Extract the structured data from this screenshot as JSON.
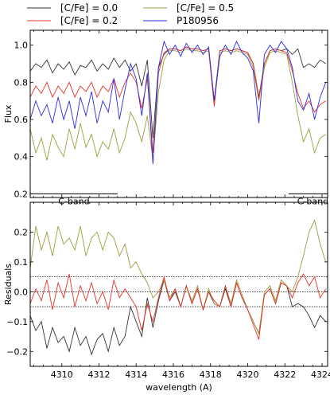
{
  "chart_data": [
    {
      "type": "line",
      "panel": "top",
      "ylabel": "Flux",
      "xlim": [
        4308.3,
        4324.3
      ],
      "ylim": [
        0.18,
        1.08
      ],
      "yticks": [
        0.2,
        0.4,
        0.6,
        0.8,
        1.0
      ],
      "ytick_labels": [
        "0.2",
        "0.4",
        "0.6",
        "0.8",
        "1.0"
      ],
      "grid": false,
      "legend_position": "above plot, two columns",
      "series": [
        {
          "name": "[C/Fe] = 0.0",
          "color": "#333333",
          "x": [
            4308.3,
            4308.6,
            4308.9,
            4309.2,
            4309.5,
            4309.8,
            4310.1,
            4310.4,
            4310.7,
            4311.0,
            4311.3,
            4311.6,
            4311.9,
            4312.2,
            4312.5,
            4312.8,
            4313.1,
            4313.4,
            4313.7,
            4314.0,
            4314.3,
            4314.6,
            4314.9,
            4315.2,
            4315.5,
            4315.8,
            4316.1,
            4316.4,
            4316.7,
            4317.0,
            4317.3,
            4317.6,
            4317.9,
            4318.2,
            4318.5,
            4318.8,
            4319.1,
            4319.4,
            4319.7,
            4320.0,
            4320.3,
            4320.6,
            4320.9,
            4321.2,
            4321.5,
            4321.8,
            4322.1,
            4322.4,
            4322.7,
            4323.0,
            4323.3,
            4323.6,
            4323.9,
            4324.2
          ],
          "y": [
            0.86,
            0.9,
            0.88,
            0.92,
            0.85,
            0.9,
            0.87,
            0.91,
            0.84,
            0.89,
            0.88,
            0.92,
            0.86,
            0.9,
            0.87,
            0.93,
            0.88,
            0.92,
            0.86,
            0.9,
            0.78,
            0.92,
            0.5,
            0.88,
            0.95,
            0.98,
            0.98,
            0.97,
            0.99,
            0.98,
            0.98,
            0.97,
            0.98,
            0.7,
            0.97,
            0.98,
            0.97,
            0.98,
            0.97,
            0.96,
            0.9,
            0.72,
            0.9,
            0.97,
            0.98,
            0.97,
            0.98,
            0.95,
            0.98,
            0.88,
            0.9,
            0.88,
            0.92,
            0.9
          ]
        },
        {
          "name": "[C/Fe] = 0.5",
          "color": "#9c9c3f",
          "x": [
            4308.3,
            4308.6,
            4308.9,
            4309.2,
            4309.5,
            4309.8,
            4310.1,
            4310.4,
            4310.7,
            4311.0,
            4311.3,
            4311.6,
            4311.9,
            4312.2,
            4312.5,
            4312.8,
            4313.1,
            4313.4,
            4313.7,
            4314.0,
            4314.3,
            4314.6,
            4314.9,
            4315.2,
            4315.5,
            4315.8,
            4316.1,
            4316.4,
            4316.7,
            4317.0,
            4317.3,
            4317.6,
            4317.9,
            4318.2,
            4318.5,
            4318.8,
            4319.1,
            4319.4,
            4319.7,
            4320.0,
            4320.3,
            4320.6,
            4320.9,
            4321.2,
            4321.5,
            4321.8,
            4322.1,
            4322.4,
            4322.7,
            4323.0,
            4323.3,
            4323.6,
            4323.9,
            4324.2
          ],
          "y": [
            0.55,
            0.42,
            0.5,
            0.38,
            0.52,
            0.45,
            0.4,
            0.55,
            0.44,
            0.58,
            0.45,
            0.52,
            0.4,
            0.48,
            0.44,
            0.55,
            0.42,
            0.5,
            0.64,
            0.58,
            0.48,
            0.62,
            0.38,
            0.75,
            0.92,
            0.97,
            0.97,
            0.96,
            0.98,
            0.97,
            0.97,
            0.96,
            0.97,
            0.68,
            0.96,
            0.97,
            0.96,
            0.97,
            0.96,
            0.95,
            0.88,
            0.7,
            0.88,
            0.96,
            0.97,
            0.96,
            0.95,
            0.8,
            0.62,
            0.48,
            0.55,
            0.42,
            0.5,
            0.52
          ]
        },
        {
          "name": "[C/Fe] = 0.2",
          "color": "#e8332a",
          "x": [
            4308.3,
            4308.6,
            4308.9,
            4309.2,
            4309.5,
            4309.8,
            4310.1,
            4310.4,
            4310.7,
            4311.0,
            4311.3,
            4311.6,
            4311.9,
            4312.2,
            4312.5,
            4312.8,
            4313.1,
            4313.4,
            4313.7,
            4314.0,
            4314.3,
            4314.6,
            4314.9,
            4315.2,
            4315.5,
            4315.8,
            4316.1,
            4316.4,
            4316.7,
            4317.0,
            4317.3,
            4317.6,
            4317.9,
            4318.2,
            4318.5,
            4318.8,
            4319.1,
            4319.4,
            4319.7,
            4320.0,
            4320.3,
            4320.6,
            4320.9,
            4321.2,
            4321.5,
            4321.8,
            4322.1,
            4322.4,
            4322.7,
            4323.0,
            4323.3,
            4323.6,
            4323.9,
            4324.2
          ],
          "y": [
            0.72,
            0.78,
            0.74,
            0.8,
            0.72,
            0.78,
            0.74,
            0.8,
            0.72,
            0.78,
            0.75,
            0.8,
            0.72,
            0.78,
            0.75,
            0.82,
            0.72,
            0.8,
            0.85,
            0.8,
            0.66,
            0.82,
            0.42,
            0.85,
            0.96,
            0.98,
            0.98,
            0.97,
            0.99,
            0.98,
            0.98,
            0.97,
            0.98,
            0.67,
            0.97,
            0.98,
            0.97,
            0.98,
            0.97,
            0.96,
            0.9,
            0.71,
            0.9,
            0.97,
            0.98,
            0.97,
            0.96,
            0.86,
            0.74,
            0.66,
            0.7,
            0.64,
            0.68,
            0.7
          ]
        },
        {
          "name": "P180956",
          "color": "#2a2ae0",
          "x": [
            4308.3,
            4308.6,
            4308.9,
            4309.2,
            4309.5,
            4309.8,
            4310.1,
            4310.4,
            4310.7,
            4311.0,
            4311.3,
            4311.6,
            4311.9,
            4312.2,
            4312.5,
            4312.8,
            4313.1,
            4313.4,
            4313.7,
            4314.0,
            4314.3,
            4314.6,
            4314.9,
            4315.2,
            4315.5,
            4315.8,
            4316.1,
            4316.4,
            4316.7,
            4317.0,
            4317.3,
            4317.6,
            4317.9,
            4318.2,
            4318.5,
            4318.8,
            4319.1,
            4319.4,
            4319.7,
            4320.0,
            4320.3,
            4320.6,
            4320.9,
            4321.2,
            4321.5,
            4321.8,
            4322.1,
            4322.4,
            4322.7,
            4323.0,
            4323.3,
            4323.6,
            4323.9,
            4324.2
          ],
          "y": [
            0.6,
            0.7,
            0.62,
            0.68,
            0.58,
            0.72,
            0.6,
            0.7,
            0.55,
            0.72,
            0.62,
            0.75,
            0.58,
            0.7,
            0.64,
            0.82,
            0.6,
            0.76,
            0.9,
            0.82,
            0.62,
            0.85,
            0.36,
            0.88,
            1.02,
            0.95,
            1.0,
            0.94,
            1.01,
            0.96,
            1.0,
            0.95,
            0.99,
            0.7,
            0.94,
            1.0,
            0.95,
            1.02,
            0.96,
            0.93,
            0.86,
            0.58,
            0.95,
            1.0,
            0.96,
            1.02,
            0.98,
            0.88,
            0.7,
            0.65,
            0.74,
            0.6,
            0.72,
            0.8
          ]
        }
      ],
      "annotations": [
        {
          "text": "C-band",
          "x_range": [
            4308.3,
            4313.0
          ],
          "y": 0.2
        },
        {
          "text": "C-band",
          "x_range": [
            4322.2,
            4324.3
          ],
          "y": 0.2
        }
      ]
    },
    {
      "type": "line",
      "panel": "bottom",
      "ylabel": "Residuals",
      "xlabel": "wavelength (A)",
      "xlim": [
        4308.3,
        4324.3
      ],
      "ylim": [
        -0.25,
        0.3
      ],
      "xticks": [
        4310,
        4312,
        4314,
        4316,
        4318,
        4320,
        4322,
        4324
      ],
      "xtick_labels": [
        "4310",
        "4312",
        "4314",
        "4316",
        "4318",
        "4320",
        "4322",
        "4324"
      ],
      "yticks": [
        -0.2,
        -0.1,
        0.0,
        0.1,
        0.2
      ],
      "ytick_labels": [
        "−0.2",
        "−0.1",
        "0.0",
        "0.1",
        "0.2"
      ],
      "reference_lines": [
        0.05,
        0.0,
        -0.05
      ],
      "grid": false,
      "series": [
        {
          "name": "[C/Fe] = 0.0",
          "color": "#333333",
          "x": [
            4308.3,
            4308.6,
            4308.9,
            4309.2,
            4309.5,
            4309.8,
            4310.1,
            4310.4,
            4310.7,
            4311.0,
            4311.3,
            4311.6,
            4311.9,
            4312.2,
            4312.5,
            4312.8,
            4313.1,
            4313.4,
            4313.7,
            4314.0,
            4314.3,
            4314.6,
            4314.9,
            4315.2,
            4315.5,
            4315.8,
            4316.1,
            4316.4,
            4316.7,
            4317.0,
            4317.3,
            4317.6,
            4317.9,
            4318.2,
            4318.5,
            4318.8,
            4319.1,
            4319.4,
            4319.7,
            4320.0,
            4320.3,
            4320.6,
            4320.9,
            4321.2,
            4321.5,
            4321.8,
            4322.1,
            4322.4,
            4322.7,
            4323.0,
            4323.3,
            4323.6,
            4323.9,
            4324.2
          ],
          "y": [
            -0.08,
            -0.13,
            -0.1,
            -0.19,
            -0.12,
            -0.17,
            -0.15,
            -0.2,
            -0.12,
            -0.18,
            -0.15,
            -0.21,
            -0.16,
            -0.14,
            -0.2,
            -0.12,
            -0.18,
            -0.15,
            -0.05,
            -0.1,
            -0.15,
            -0.02,
            -0.12,
            -0.03,
            0.04,
            -0.03,
            0.0,
            -0.05,
            0.02,
            -0.04,
            0.01,
            -0.06,
            0.0,
            -0.04,
            -0.05,
            0.01,
            -0.05,
            0.03,
            -0.02,
            -0.06,
            -0.1,
            -0.14,
            -0.01,
            0.01,
            -0.04,
            0.03,
            0.02,
            -0.05,
            -0.04,
            -0.05,
            -0.08,
            -0.12,
            -0.08,
            -0.1
          ]
        },
        {
          "name": "[C/Fe] = 0.5",
          "color": "#9c9c3f",
          "x": [
            4308.3,
            4308.6,
            4308.9,
            4309.2,
            4309.5,
            4309.8,
            4310.1,
            4310.4,
            4310.7,
            4311.0,
            4311.3,
            4311.6,
            4311.9,
            4312.2,
            4312.5,
            4312.8,
            4313.1,
            4313.4,
            4313.7,
            4314.0,
            4314.3,
            4314.6,
            4314.9,
            4315.2,
            4315.5,
            4315.8,
            4316.1,
            4316.4,
            4316.7,
            4317.0,
            4317.3,
            4317.6,
            4317.9,
            4318.2,
            4318.5,
            4318.8,
            4319.1,
            4319.4,
            4319.7,
            4320.0,
            4320.3,
            4320.6,
            4320.9,
            4321.2,
            4321.5,
            4321.8,
            4322.1,
            4322.4,
            4322.7,
            4323.0,
            4323.3,
            4323.6,
            4323.9,
            4324.2
          ],
          "y": [
            0.08,
            0.22,
            0.14,
            0.2,
            0.12,
            0.22,
            0.16,
            0.18,
            0.14,
            0.22,
            0.12,
            0.18,
            0.2,
            0.14,
            0.2,
            0.18,
            0.12,
            0.16,
            0.08,
            0.1,
            0.06,
            0.03,
            -0.02,
            0.0,
            0.04,
            -0.02,
            0.01,
            -0.05,
            0.02,
            -0.03,
            0.02,
            -0.06,
            0.01,
            -0.04,
            -0.05,
            0.02,
            -0.04,
            0.04,
            -0.01,
            -0.06,
            -0.1,
            -0.14,
            0.0,
            0.02,
            -0.03,
            0.04,
            0.02,
            0.0,
            0.05,
            0.12,
            0.2,
            0.24,
            0.16,
            0.1
          ]
        },
        {
          "name": "[C/Fe] = 0.2",
          "color": "#e8332a",
          "x": [
            4308.3,
            4308.6,
            4308.9,
            4309.2,
            4309.5,
            4309.8,
            4310.1,
            4310.4,
            4310.7,
            4311.0,
            4311.3,
            4311.6,
            4311.9,
            4312.2,
            4312.5,
            4312.8,
            4313.1,
            4313.4,
            4313.7,
            4314.0,
            4314.3,
            4314.6,
            4314.9,
            4315.2,
            4315.5,
            4315.8,
            4316.1,
            4316.4,
            4316.7,
            4317.0,
            4317.3,
            4317.6,
            4317.9,
            4318.2,
            4318.5,
            4318.8,
            4319.1,
            4319.4,
            4319.7,
            4320.0,
            4320.3,
            4320.6,
            4320.9,
            4321.2,
            4321.5,
            4321.8,
            4322.1,
            4322.4,
            4322.7,
            4323.0,
            4323.3,
            4323.6,
            4323.9,
            4324.2
          ],
          "y": [
            -0.04,
            0.01,
            -0.03,
            0.04,
            -0.06,
            0.03,
            -0.02,
            0.06,
            -0.05,
            0.02,
            -0.03,
            0.03,
            -0.04,
            0.0,
            -0.06,
            0.04,
            -0.02,
            0.01,
            -0.02,
            -0.05,
            -0.13,
            -0.04,
            -0.1,
            -0.02,
            0.05,
            -0.03,
            0.01,
            -0.05,
            0.02,
            -0.04,
            0.01,
            -0.06,
            0.0,
            -0.03,
            -0.05,
            0.02,
            -0.05,
            0.03,
            -0.02,
            -0.06,
            -0.11,
            -0.16,
            -0.01,
            0.01,
            -0.04,
            0.03,
            0.02,
            -0.02,
            0.03,
            0.06,
            0.02,
            0.05,
            -0.02,
            0.01
          ]
        }
      ]
    }
  ]
}
